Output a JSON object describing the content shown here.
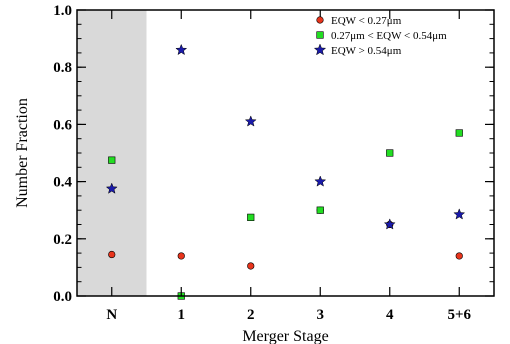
{
  "chart_data": {
    "type": "scatter",
    "xlabel": "Merger Stage",
    "ylabel": "Number Fraction",
    "categories": [
      "N",
      "1",
      "2",
      "3",
      "4",
      "5+6"
    ],
    "shaded_categories": [
      "N"
    ],
    "ylim": [
      0.0,
      1.0
    ],
    "yticks": [
      "0.0",
      "0.2",
      "0.4",
      "0.6",
      "0.8",
      "1.0"
    ],
    "legend_position": "top-right",
    "grid": false,
    "series": [
      {
        "name": "EQW < 0.27μm",
        "marker": "circle",
        "color": "#e8341c",
        "values": [
          0.145,
          0.14,
          0.105,
          0.3,
          0.25,
          0.14
        ]
      },
      {
        "name": "0.27μm < EQW < 0.54μm",
        "marker": "square",
        "color": "#22dd22",
        "values": [
          0.475,
          0.0,
          0.275,
          0.3,
          0.5,
          0.57
        ]
      },
      {
        "name": "EQW > 0.54μm",
        "marker": "star",
        "color": "#1a1aaa",
        "values": [
          0.375,
          0.86,
          0.61,
          0.4,
          0.25,
          0.285
        ]
      }
    ]
  }
}
